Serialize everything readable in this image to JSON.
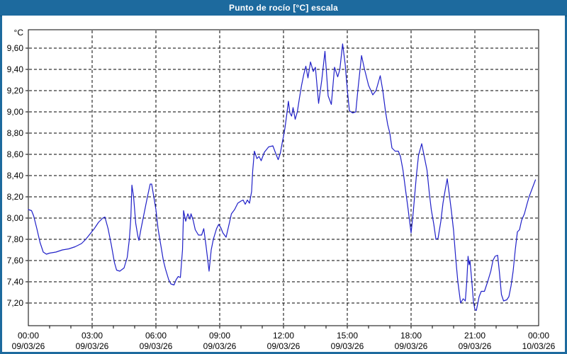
{
  "window": {
    "title": "Punto de rocío [°C] escala"
  },
  "colors": {
    "titlebar": "#1d6a9e",
    "frame": "#1d6a9e",
    "plot_background": "#ffffff",
    "grid": "#000000",
    "line": "#2020c8",
    "text": "#000000"
  },
  "chart_data": {
    "type": "line",
    "title": "Punto de rocío [°C] escala",
    "unit_label": "°C",
    "xlabel": "",
    "ylabel": "°C",
    "grid": "dashed",
    "legend_position": "none",
    "ylim": [
      6.987,
      9.773
    ],
    "xlim_hours": [
      0,
      24
    ],
    "y_ticks": [
      {
        "value": 9.6,
        "label": "9,60"
      },
      {
        "value": 9.4,
        "label": "9,40"
      },
      {
        "value": 9.2,
        "label": "9,20"
      },
      {
        "value": 9.0,
        "label": "9,00"
      },
      {
        "value": 8.8,
        "label": "8,80"
      },
      {
        "value": 8.6,
        "label": "8,60"
      },
      {
        "value": 8.4,
        "label": "8,40"
      },
      {
        "value": 8.2,
        "label": "8,20"
      },
      {
        "value": 8.0,
        "label": "8,00"
      },
      {
        "value": 7.8,
        "label": "7,80"
      },
      {
        "value": 7.6,
        "label": "7,60"
      },
      {
        "value": 7.4,
        "label": "7,40"
      },
      {
        "value": 7.2,
        "label": "7,20"
      }
    ],
    "x_ticks": [
      {
        "hour": 0,
        "time": "00:00",
        "date": "09/03/26"
      },
      {
        "hour": 3,
        "time": "03:00",
        "date": "09/03/26"
      },
      {
        "hour": 6,
        "time": "06:00",
        "date": "09/03/26"
      },
      {
        "hour": 9,
        "time": "09:00",
        "date": "09/03/26"
      },
      {
        "hour": 12,
        "time": "12:00",
        "date": "09/03/26"
      },
      {
        "hour": 15,
        "time": "15:00",
        "date": "09/03/26"
      },
      {
        "hour": 18,
        "time": "18:00",
        "date": "09/03/26"
      },
      {
        "hour": 21,
        "time": "21:00",
        "date": "09/03/26"
      },
      {
        "hour": 24,
        "time": "00:00",
        "date": "10/03/26"
      }
    ],
    "series": [
      {
        "name": "Punto de rocío",
        "unit": "°C",
        "points": [
          [
            0.0,
            8.08
          ],
          [
            0.15,
            8.07
          ],
          [
            0.25,
            8.02
          ],
          [
            0.4,
            7.9
          ],
          [
            0.55,
            7.77
          ],
          [
            0.7,
            7.68
          ],
          [
            0.85,
            7.66
          ],
          [
            1.0,
            7.67
          ],
          [
            1.3,
            7.68
          ],
          [
            1.6,
            7.7
          ],
          [
            1.9,
            7.71
          ],
          [
            2.2,
            7.73
          ],
          [
            2.5,
            7.76
          ],
          [
            2.7,
            7.8
          ],
          [
            2.9,
            7.85
          ],
          [
            3.1,
            7.9
          ],
          [
            3.3,
            7.96
          ],
          [
            3.5,
            8.0
          ],
          [
            3.6,
            8.01
          ],
          [
            3.75,
            7.9
          ],
          [
            3.9,
            7.75
          ],
          [
            4.05,
            7.58
          ],
          [
            4.15,
            7.51
          ],
          [
            4.3,
            7.5
          ],
          [
            4.5,
            7.53
          ],
          [
            4.65,
            7.63
          ],
          [
            4.75,
            7.8
          ],
          [
            4.82,
            8.0
          ],
          [
            4.87,
            8.31
          ],
          [
            4.95,
            8.2
          ],
          [
            5.05,
            7.95
          ],
          [
            5.15,
            7.83
          ],
          [
            5.2,
            7.79
          ],
          [
            5.3,
            7.9
          ],
          [
            5.45,
            8.05
          ],
          [
            5.6,
            8.2
          ],
          [
            5.73,
            8.32
          ],
          [
            5.8,
            8.32
          ],
          [
            5.9,
            8.2
          ],
          [
            6.0,
            8.08
          ],
          [
            6.1,
            7.9
          ],
          [
            6.2,
            7.78
          ],
          [
            6.35,
            7.6
          ],
          [
            6.45,
            7.52
          ],
          [
            6.6,
            7.42
          ],
          [
            6.7,
            7.38
          ],
          [
            6.85,
            7.37
          ],
          [
            6.95,
            7.42
          ],
          [
            7.05,
            7.45
          ],
          [
            7.15,
            7.44
          ],
          [
            7.25,
            7.7
          ],
          [
            7.3,
            8.07
          ],
          [
            7.4,
            7.97
          ],
          [
            7.5,
            8.04
          ],
          [
            7.6,
            7.99
          ],
          [
            7.65,
            8.04
          ],
          [
            7.75,
            7.98
          ],
          [
            7.85,
            7.89
          ],
          [
            8.0,
            7.84
          ],
          [
            8.15,
            7.84
          ],
          [
            8.25,
            7.9
          ],
          [
            8.35,
            7.75
          ],
          [
            8.5,
            7.5
          ],
          [
            8.6,
            7.7
          ],
          [
            8.7,
            7.8
          ],
          [
            8.85,
            7.9
          ],
          [
            8.95,
            7.94
          ],
          [
            9.05,
            7.91
          ],
          [
            9.15,
            7.86
          ],
          [
            9.3,
            7.82
          ],
          [
            9.45,
            7.95
          ],
          [
            9.55,
            8.04
          ],
          [
            9.7,
            8.08
          ],
          [
            9.85,
            8.14
          ],
          [
            10.0,
            8.16
          ],
          [
            10.1,
            8.17
          ],
          [
            10.2,
            8.13
          ],
          [
            10.3,
            8.17
          ],
          [
            10.4,
            8.14
          ],
          [
            10.5,
            8.25
          ],
          [
            10.55,
            8.44
          ],
          [
            10.63,
            8.63
          ],
          [
            10.75,
            8.56
          ],
          [
            10.85,
            8.58
          ],
          [
            10.95,
            8.54
          ],
          [
            11.1,
            8.62
          ],
          [
            11.3,
            8.67
          ],
          [
            11.5,
            8.68
          ],
          [
            11.65,
            8.6
          ],
          [
            11.75,
            8.55
          ],
          [
            11.85,
            8.61
          ],
          [
            11.95,
            8.72
          ],
          [
            12.0,
            8.77
          ],
          [
            12.07,
            8.85
          ],
          [
            12.15,
            8.97
          ],
          [
            12.23,
            9.1
          ],
          [
            12.3,
            8.99
          ],
          [
            12.38,
            8.96
          ],
          [
            12.45,
            9.04
          ],
          [
            12.55,
            8.93
          ],
          [
            12.65,
            9.0
          ],
          [
            12.75,
            9.13
          ],
          [
            12.85,
            9.25
          ],
          [
            12.95,
            9.35
          ],
          [
            13.05,
            9.43
          ],
          [
            13.15,
            9.32
          ],
          [
            13.27,
            9.47
          ],
          [
            13.4,
            9.38
          ],
          [
            13.5,
            9.42
          ],
          [
            13.65,
            9.08
          ],
          [
            13.8,
            9.3
          ],
          [
            13.95,
            9.57
          ],
          [
            14.1,
            9.15
          ],
          [
            14.25,
            9.07
          ],
          [
            14.4,
            9.42
          ],
          [
            14.55,
            9.33
          ],
          [
            14.65,
            9.4
          ],
          [
            14.78,
            9.64
          ],
          [
            14.9,
            9.45
          ],
          [
            15.0,
            9.21
          ],
          [
            15.1,
            9.01
          ],
          [
            15.25,
            8.99
          ],
          [
            15.4,
            9.0
          ],
          [
            15.5,
            9.21
          ],
          [
            15.67,
            9.53
          ],
          [
            15.8,
            9.41
          ],
          [
            16.0,
            9.25
          ],
          [
            16.2,
            9.16
          ],
          [
            16.35,
            9.2
          ],
          [
            16.55,
            9.34
          ],
          [
            16.67,
            9.2
          ],
          [
            16.8,
            9.0
          ],
          [
            16.9,
            8.88
          ],
          [
            17.0,
            8.8
          ],
          [
            17.1,
            8.66
          ],
          [
            17.25,
            8.63
          ],
          [
            17.4,
            8.63
          ],
          [
            17.5,
            8.58
          ],
          [
            17.62,
            8.45
          ],
          [
            17.75,
            8.25
          ],
          [
            17.85,
            8.1
          ],
          [
            18.0,
            7.86
          ],
          [
            18.1,
            8.05
          ],
          [
            18.25,
            8.4
          ],
          [
            18.35,
            8.59
          ],
          [
            18.5,
            8.7
          ],
          [
            18.6,
            8.6
          ],
          [
            18.75,
            8.45
          ],
          [
            18.85,
            8.25
          ],
          [
            18.95,
            8.08
          ],
          [
            19.07,
            7.94
          ],
          [
            19.17,
            7.8
          ],
          [
            19.27,
            7.81
          ],
          [
            19.4,
            7.97
          ],
          [
            19.5,
            8.14
          ],
          [
            19.6,
            8.26
          ],
          [
            19.7,
            8.37
          ],
          [
            19.8,
            8.22
          ],
          [
            19.9,
            8.06
          ],
          [
            20.0,
            7.88
          ],
          [
            20.1,
            7.62
          ],
          [
            20.2,
            7.4
          ],
          [
            20.33,
            7.2
          ],
          [
            20.45,
            7.24
          ],
          [
            20.55,
            7.22
          ],
          [
            20.62,
            7.4
          ],
          [
            20.68,
            7.64
          ],
          [
            20.73,
            7.56
          ],
          [
            20.77,
            7.6
          ],
          [
            20.85,
            7.42
          ],
          [
            20.93,
            7.22
          ],
          [
            21.0,
            7.14
          ],
          [
            21.07,
            7.13
          ],
          [
            21.2,
            7.26
          ],
          [
            21.3,
            7.31
          ],
          [
            21.45,
            7.31
          ],
          [
            21.6,
            7.4
          ],
          [
            21.75,
            7.5
          ],
          [
            21.85,
            7.6
          ],
          [
            21.95,
            7.64
          ],
          [
            22.07,
            7.65
          ],
          [
            22.15,
            7.5
          ],
          [
            22.25,
            7.28
          ],
          [
            22.35,
            7.22
          ],
          [
            22.5,
            7.23
          ],
          [
            22.6,
            7.26
          ],
          [
            22.7,
            7.36
          ],
          [
            22.8,
            7.5
          ],
          [
            22.9,
            7.7
          ],
          [
            23.0,
            7.87
          ],
          [
            23.1,
            7.89
          ],
          [
            23.2,
            7.98
          ],
          [
            23.33,
            8.04
          ],
          [
            23.45,
            8.13
          ],
          [
            23.55,
            8.2
          ],
          [
            23.7,
            8.28
          ],
          [
            23.85,
            8.36
          ]
        ]
      }
    ]
  }
}
